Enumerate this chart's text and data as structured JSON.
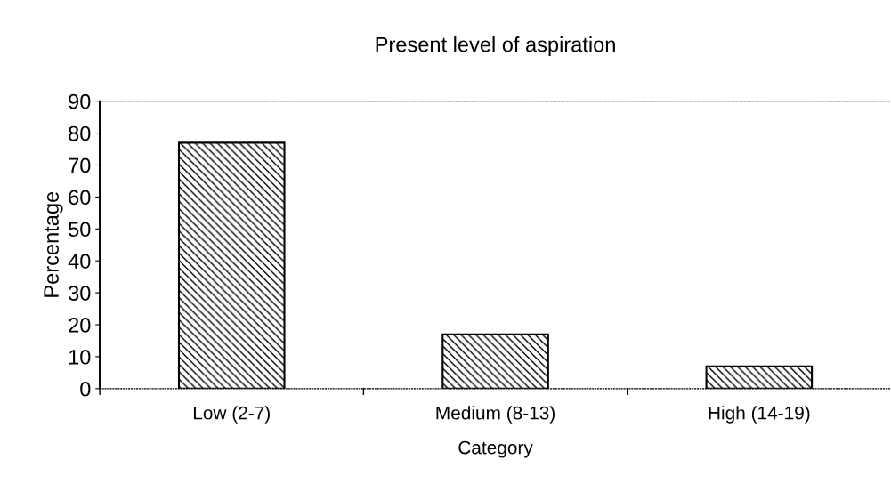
{
  "chart_data": {
    "type": "bar",
    "title": "Present level of aspiration",
    "xlabel": "Category",
    "ylabel": "Percentage",
    "categories": [
      "Low (2-7)",
      "Medium (8-13)",
      "High (14-19)"
    ],
    "values": [
      77,
      17,
      7
    ],
    "ylim": [
      0,
      90
    ],
    "yticks": [
      0,
      10,
      20,
      30,
      40,
      50,
      60,
      70,
      80,
      90
    ],
    "grid": false,
    "legend": false
  }
}
